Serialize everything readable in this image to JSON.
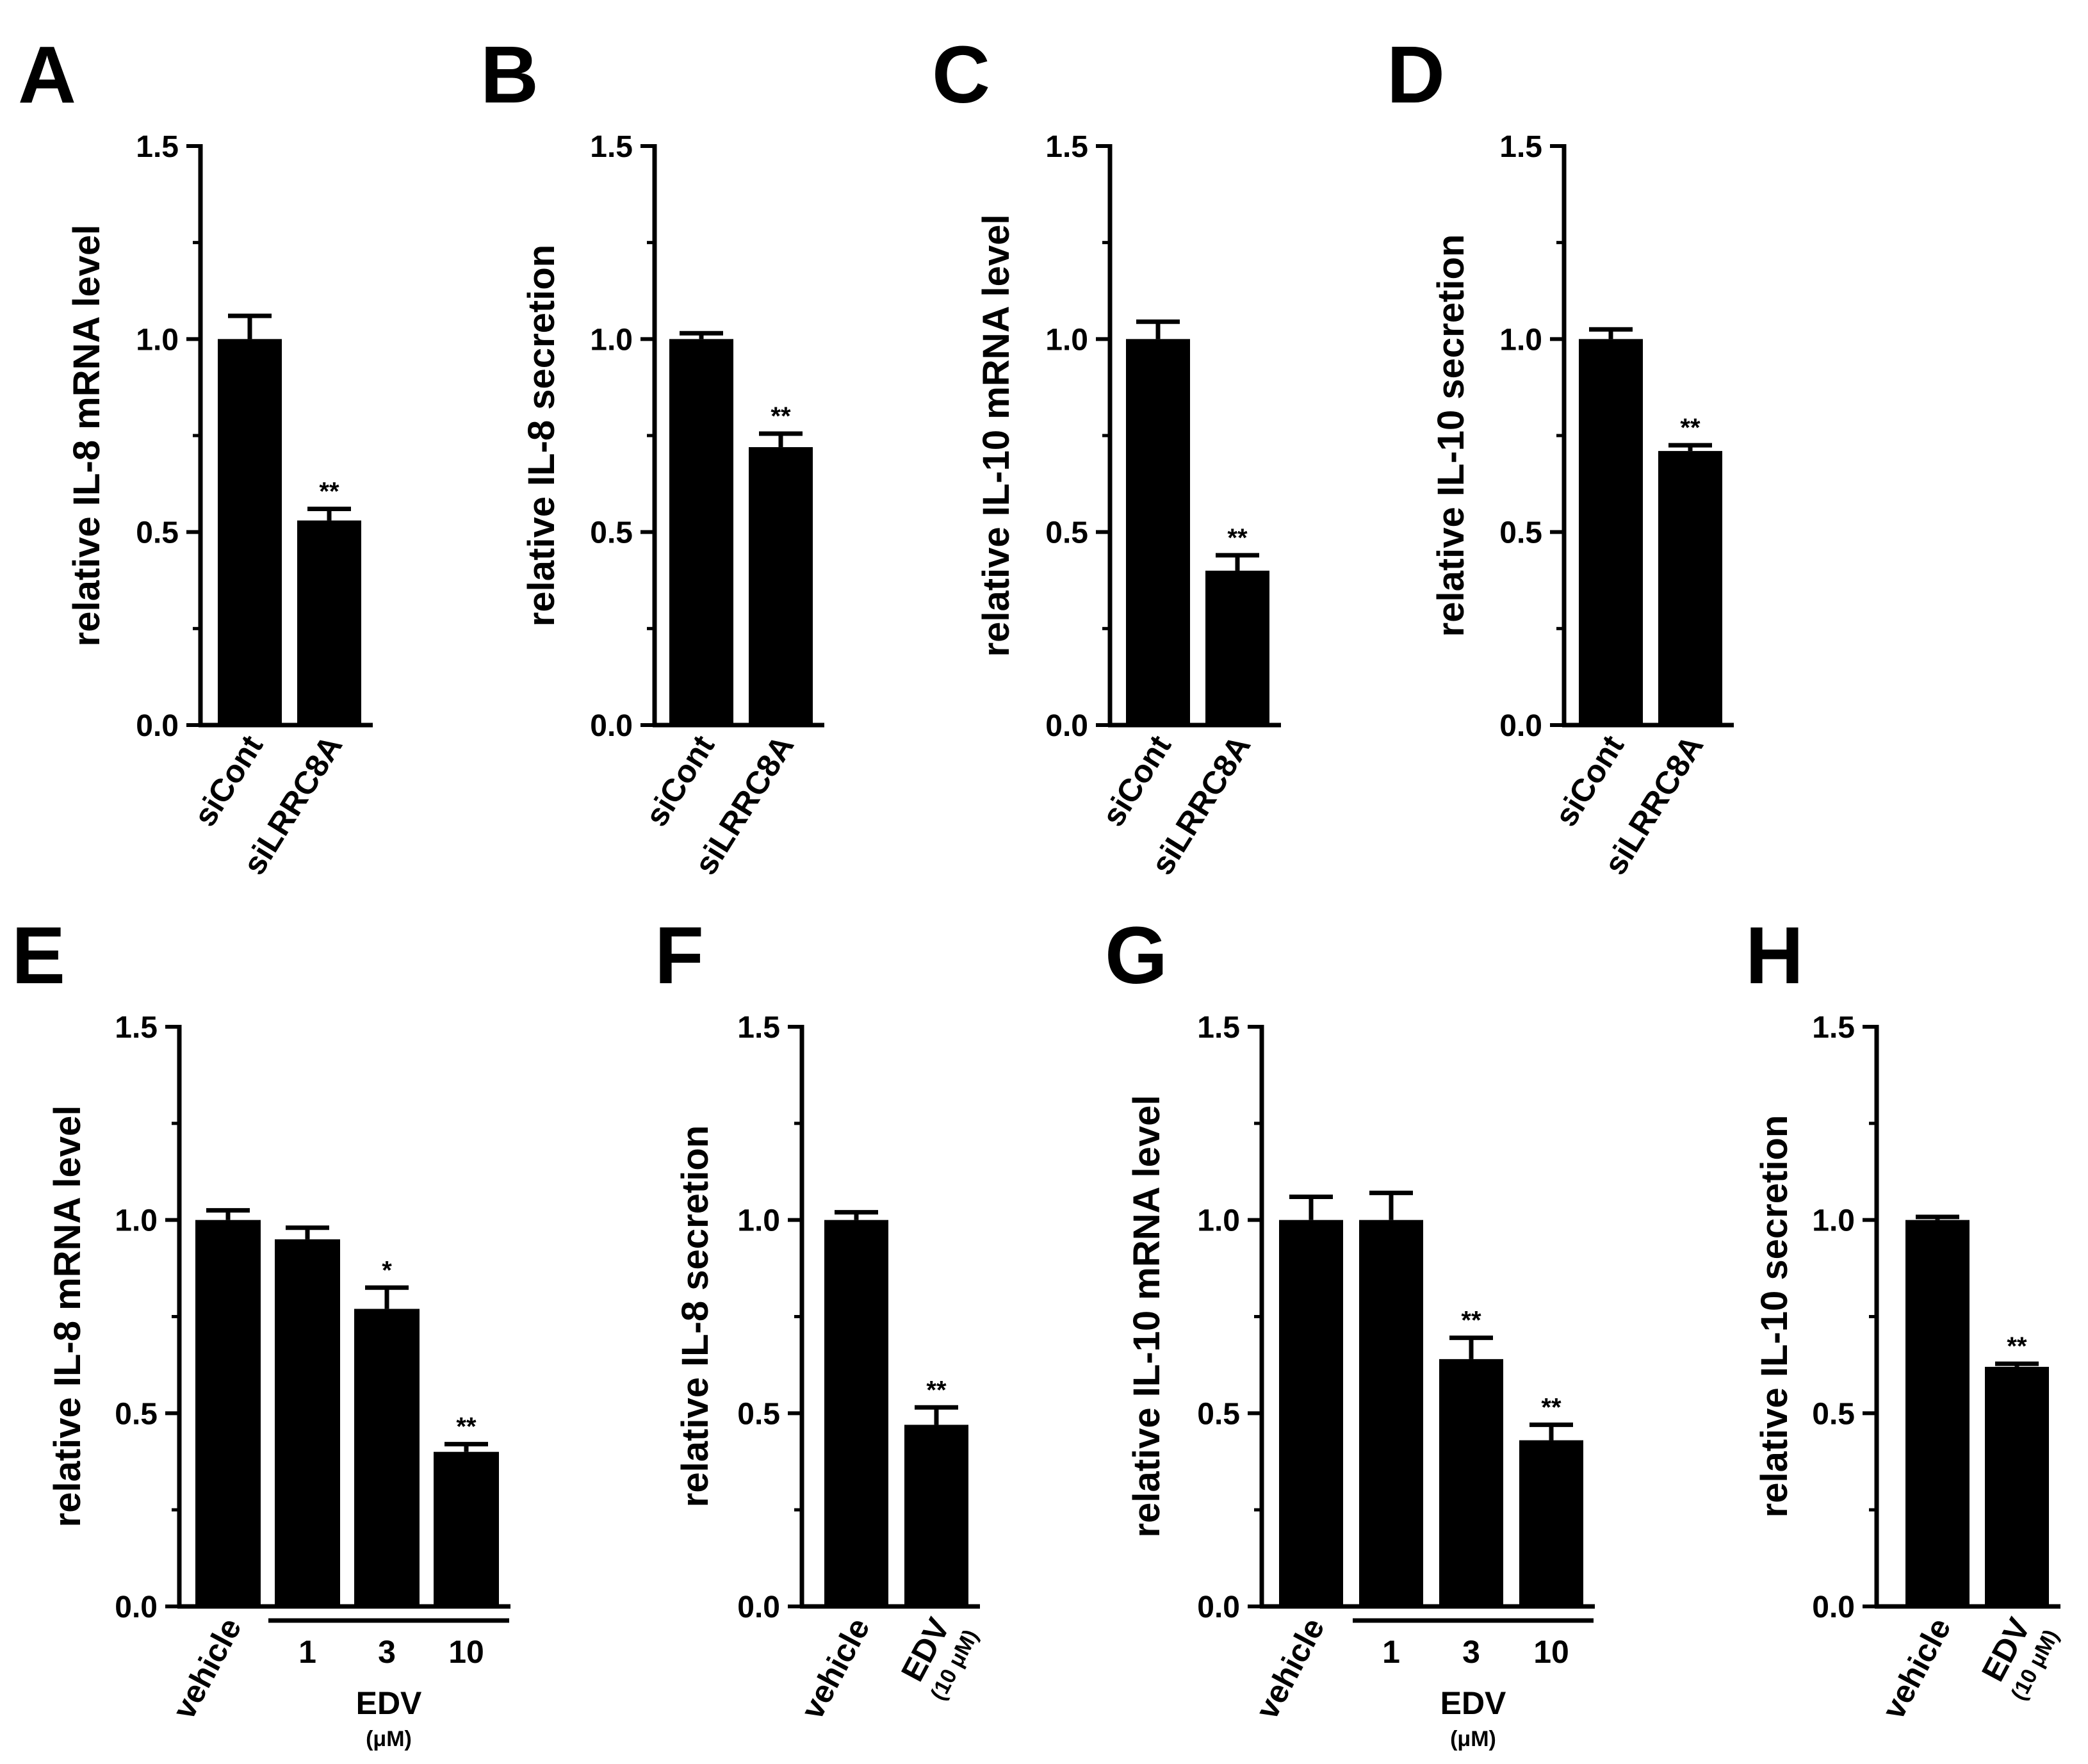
{
  "figure": {
    "colors": {
      "bar": "#000000",
      "axis": "#000000",
      "background": "#ffffff"
    }
  },
  "chart_data": [
    {
      "panel": "A",
      "type": "bar",
      "ylabel": "relative IL-8 mRNA level",
      "ylim": [
        0,
        1.5
      ],
      "yticks": [
        "0.0",
        "0.5",
        "1.0",
        "1.5"
      ],
      "categories": [
        "siCont",
        "siLRRC8A"
      ],
      "values": [
        1.0,
        0.53
      ],
      "errors": [
        0.06,
        0.03
      ],
      "significance": [
        "",
        "**"
      ]
    },
    {
      "panel": "B",
      "type": "bar",
      "ylabel": "relative IL-8 secretion",
      "ylim": [
        0,
        1.5
      ],
      "yticks": [
        "0.0",
        "0.5",
        "1.0",
        "1.5"
      ],
      "categories": [
        "siCont",
        "siLRRC8A"
      ],
      "values": [
        1.0,
        0.72
      ],
      "errors": [
        0.015,
        0.035
      ],
      "significance": [
        "",
        "**"
      ]
    },
    {
      "panel": "C",
      "type": "bar",
      "ylabel": "relative IL-10 mRNA level",
      "ylim": [
        0,
        1.5
      ],
      "yticks": [
        "0.0",
        "0.5",
        "1.0",
        "1.5"
      ],
      "categories": [
        "siCont",
        "siLRRC8A"
      ],
      "values": [
        1.0,
        0.4
      ],
      "errors": [
        0.045,
        0.04
      ],
      "significance": [
        "",
        "**"
      ]
    },
    {
      "panel": "D",
      "type": "bar",
      "ylabel": "relative IL-10 secretion",
      "ylim": [
        0,
        1.5
      ],
      "yticks": [
        "0.0",
        "0.5",
        "1.0",
        "1.5"
      ],
      "categories": [
        "siCont",
        "siLRRC8A"
      ],
      "values": [
        1.0,
        0.71
      ],
      "errors": [
        0.025,
        0.015
      ],
      "significance": [
        "",
        "**"
      ]
    },
    {
      "panel": "E",
      "type": "bar",
      "ylabel": "relative IL-8 mRNA level",
      "ylim": [
        0,
        1.5
      ],
      "yticks": [
        "0.0",
        "0.5",
        "1.0",
        "1.5"
      ],
      "categories": [
        "vehicle",
        "1",
        "3",
        "10"
      ],
      "values": [
        1.0,
        0.95,
        0.77,
        0.4
      ],
      "errors": [
        0.025,
        0.03,
        0.055,
        0.02
      ],
      "significance": [
        "",
        "",
        "*",
        "**"
      ],
      "group_label": "EDV",
      "group_sublabel": "(μM)"
    },
    {
      "panel": "F",
      "type": "bar",
      "ylabel": "relative IL-8 secretion",
      "ylim": [
        0,
        1.5
      ],
      "yticks": [
        "0.0",
        "0.5",
        "1.0",
        "1.5"
      ],
      "categories": [
        "vehicle",
        "EDV"
      ],
      "category_sublabels": [
        "",
        "(10 μM)"
      ],
      "values": [
        1.0,
        0.47
      ],
      "errors": [
        0.02,
        0.045
      ],
      "significance": [
        "",
        "**"
      ]
    },
    {
      "panel": "G",
      "type": "bar",
      "ylabel": "relative IL-10 mRNA level",
      "ylim": [
        0,
        1.5
      ],
      "yticks": [
        "0.0",
        "0.5",
        "1.0",
        "1.5"
      ],
      "categories": [
        "vehicle",
        "1",
        "3",
        "10"
      ],
      "values": [
        1.0,
        1.0,
        0.64,
        0.43
      ],
      "errors": [
        0.06,
        0.07,
        0.055,
        0.04
      ],
      "significance": [
        "",
        "",
        "**",
        "**"
      ],
      "group_label": "EDV",
      "group_sublabel": "(μM)"
    },
    {
      "panel": "H",
      "type": "bar",
      "ylabel": "relative IL-10 secretion",
      "ylim": [
        0,
        1.5
      ],
      "yticks": [
        "0.0",
        "0.5",
        "1.0",
        "1.5"
      ],
      "categories": [
        "vehicle",
        "EDV"
      ],
      "category_sublabels": [
        "",
        "(10 μM)"
      ],
      "values": [
        1.0,
        0.62
      ],
      "errors": [
        0.008,
        0.008
      ],
      "significance": [
        "",
        "**"
      ]
    }
  ]
}
